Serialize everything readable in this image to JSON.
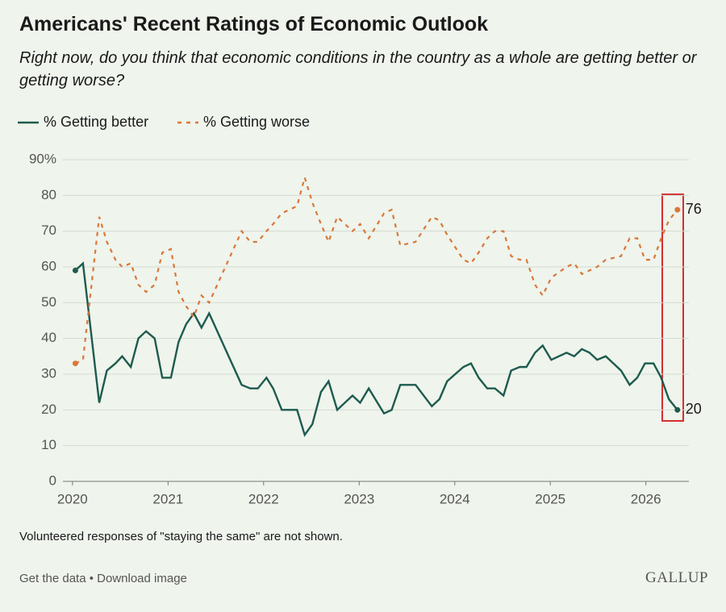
{
  "chart_data": {
    "type": "line",
    "title": "Americans' Recent Ratings of Economic Outlook",
    "subtitle": "Right now, do you think that economic conditions in the country as a whole are getting better or getting worse?",
    "note": "Volunteered responses of \"staying the same\" are not shown.",
    "x": [
      2020.03,
      2020.11,
      2020.28,
      2020.36,
      2020.45,
      2020.52,
      2020.61,
      2020.69,
      2020.77,
      2020.86,
      2020.94,
      2021.03,
      2021.11,
      2021.19,
      2021.27,
      2021.35,
      2021.43,
      2021.6,
      2021.77,
      2021.86,
      2021.94,
      2022.03,
      2022.1,
      2022.19,
      2022.35,
      2022.43,
      2022.51,
      2022.6,
      2022.68,
      2022.77,
      2022.93,
      2023.01,
      2023.1,
      2023.26,
      2023.34,
      2023.43,
      2023.59,
      2023.76,
      2023.84,
      2023.92,
      2024.09,
      2024.17,
      2024.25,
      2024.34,
      2024.42,
      2024.51,
      2024.59,
      2024.68,
      2024.75,
      2024.84,
      2024.92,
      2025.01,
      2025.17,
      2025.25,
      2025.33,
      2025.41,
      2025.49,
      2025.58,
      2025.74,
      2025.83,
      2025.91,
      2025.99,
      2026.08,
      2026.16,
      2026.24,
      2026.33
    ],
    "series": [
      {
        "name": "% Getting better",
        "color": "#1d5b4e",
        "dashed": false,
        "values": [
          59,
          61,
          22,
          31,
          33,
          35,
          32,
          40,
          42,
          40,
          29,
          29,
          39,
          44,
          47,
          43,
          47,
          37,
          27,
          26,
          26,
          29,
          26,
          20,
          20,
          13,
          16,
          25,
          28,
          20,
          24,
          22,
          26,
          19,
          20,
          27,
          27,
          21,
          23,
          28,
          32,
          33,
          29,
          26,
          26,
          24,
          31,
          32,
          32,
          36,
          38,
          34,
          36,
          35,
          37,
          36,
          34,
          35,
          31,
          27,
          29,
          33,
          33,
          29,
          23,
          20
        ]
      },
      {
        "name": "% Getting worse",
        "color": "#d9773a",
        "dashed": true,
        "values": [
          33,
          34,
          74,
          67,
          62,
          60,
          61,
          55,
          53,
          55,
          64,
          65,
          53,
          49,
          46,
          52,
          50,
          60,
          70,
          67,
          67,
          70,
          72,
          75,
          77,
          85,
          78,
          72,
          67,
          74,
          70,
          72,
          68,
          75,
          76,
          66,
          67,
          74,
          73,
          69,
          62,
          61,
          64,
          68,
          70,
          70,
          63,
          62,
          62,
          55,
          52,
          57,
          60,
          61,
          58,
          59,
          60,
          62,
          63,
          68,
          68,
          62,
          62,
          68,
          73,
          76
        ]
      }
    ],
    "xlim": [
      2019.9,
      2026.45
    ],
    "xticks": [
      2020,
      2021,
      2022,
      2023,
      2024,
      2025,
      2026
    ],
    "ylim": [
      0,
      90
    ],
    "yticks": [
      0,
      10,
      20,
      30,
      40,
      50,
      60,
      70,
      80,
      {
        "value": 90,
        "label": "90%"
      }
    ],
    "grid": true
  },
  "links": [
    "Get the data",
    "Download image"
  ],
  "brand": "GALLUP"
}
